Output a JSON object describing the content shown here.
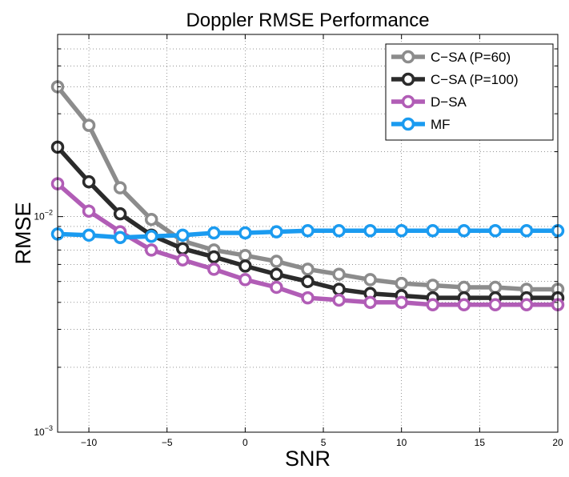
{
  "chart_data": {
    "type": "line",
    "title": "Doppler RMSE Performance",
    "xlabel": "SNR",
    "ylabel": "RMSE",
    "x_scale": "linear",
    "y_scale": "log",
    "xlim": [
      -12,
      20
    ],
    "ylim": [
      0.001,
      0.07
    ],
    "grid": true,
    "legend_position": "top-right",
    "x_ticks": [
      -10,
      -5,
      0,
      5,
      10,
      15,
      20
    ],
    "x_tick_labels": [
      "−10",
      "−5",
      "0",
      "5",
      "10",
      "15",
      "20"
    ],
    "y_ticks": [
      {
        "value": 0.01,
        "base": "10",
        "exp": "−2"
      },
      {
        "value": 0.001,
        "base": "10",
        "exp": "−3"
      }
    ],
    "x": [
      -12,
      -10,
      -8,
      -6,
      -4,
      -2,
      0,
      2,
      4,
      6,
      8,
      10,
      12,
      14,
      16,
      18,
      20
    ],
    "series": [
      {
        "name": "C−SA (P=60)",
        "color": "#8c8c8c",
        "values": [
          0.04,
          0.0265,
          0.0136,
          0.0097,
          0.0077,
          0.007,
          0.0066,
          0.0062,
          0.0057,
          0.0054,
          0.0051,
          0.0049,
          0.0048,
          0.0047,
          0.0047,
          0.0046,
          0.0046
        ]
      },
      {
        "name": "C−SA (P=100)",
        "color": "#2b2b2b",
        "values": [
          0.021,
          0.0145,
          0.0103,
          0.0082,
          0.0071,
          0.0065,
          0.0059,
          0.0054,
          0.005,
          0.0046,
          0.0044,
          0.0043,
          0.0042,
          0.0042,
          0.0042,
          0.0042,
          0.0042
        ]
      },
      {
        "name": "D−SA",
        "color": "#b15db6",
        "values": [
          0.0142,
          0.0106,
          0.0085,
          0.007,
          0.0063,
          0.0057,
          0.0051,
          0.0047,
          0.0042,
          0.0041,
          0.004,
          0.004,
          0.0039,
          0.0039,
          0.0039,
          0.0039,
          0.0039
        ]
      },
      {
        "name": "MF",
        "color": "#1b9bf0",
        "values": [
          0.0083,
          0.0082,
          0.008,
          0.0081,
          0.0082,
          0.0084,
          0.0084,
          0.0085,
          0.0086,
          0.0086,
          0.0086,
          0.0086,
          0.0086,
          0.0086,
          0.0086,
          0.0086,
          0.0086
        ]
      }
    ]
  }
}
